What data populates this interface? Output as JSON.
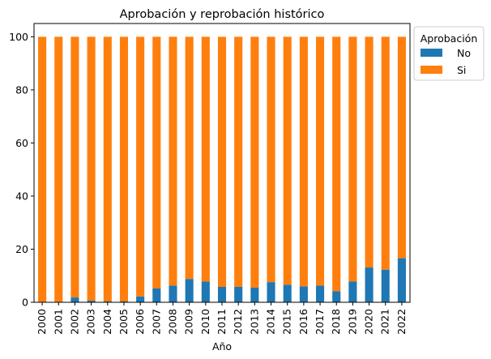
{
  "colors": {
    "no": "#1f77b4",
    "si": "#ff7f0e",
    "axis": "#000000",
    "legend_border": "#cccccc"
  },
  "chart_data": {
    "type": "bar",
    "stacked": true,
    "title": "Aprobación y reprobación histórico",
    "xlabel": "Año",
    "ylabel": "",
    "ylim": [
      0,
      105
    ],
    "yticks": [
      0,
      20,
      40,
      60,
      80,
      100
    ],
    "grid": false,
    "legend": {
      "title": "Aprobación",
      "placement": "outside-top-right",
      "entries": [
        "No",
        "Si"
      ]
    },
    "categories": [
      "2000",
      "2001",
      "2002",
      "2003",
      "2004",
      "2005",
      "2006",
      "2007",
      "2008",
      "2009",
      "2010",
      "2011",
      "2012",
      "2013",
      "2014",
      "2015",
      "2016",
      "2017",
      "2018",
      "2019",
      "2020",
      "2021",
      "2022"
    ],
    "series": [
      {
        "name": "No",
        "values": [
          0,
          0,
          1.8,
          0.6,
          0.3,
          0.3,
          2.2,
          5.2,
          6.3,
          8.8,
          7.8,
          5.8,
          5.8,
          5.5,
          7.6,
          6.6,
          6.0,
          6.3,
          4.2,
          7.8,
          13.1,
          12.3,
          16.6
        ]
      },
      {
        "name": "Si",
        "values": [
          100,
          100,
          98.2,
          99.4,
          99.7,
          99.7,
          97.8,
          94.8,
          93.7,
          91.2,
          92.2,
          94.2,
          94.2,
          94.5,
          92.4,
          93.4,
          94.0,
          93.7,
          95.8,
          92.2,
          86.9,
          87.7,
          83.4
        ]
      }
    ]
  }
}
